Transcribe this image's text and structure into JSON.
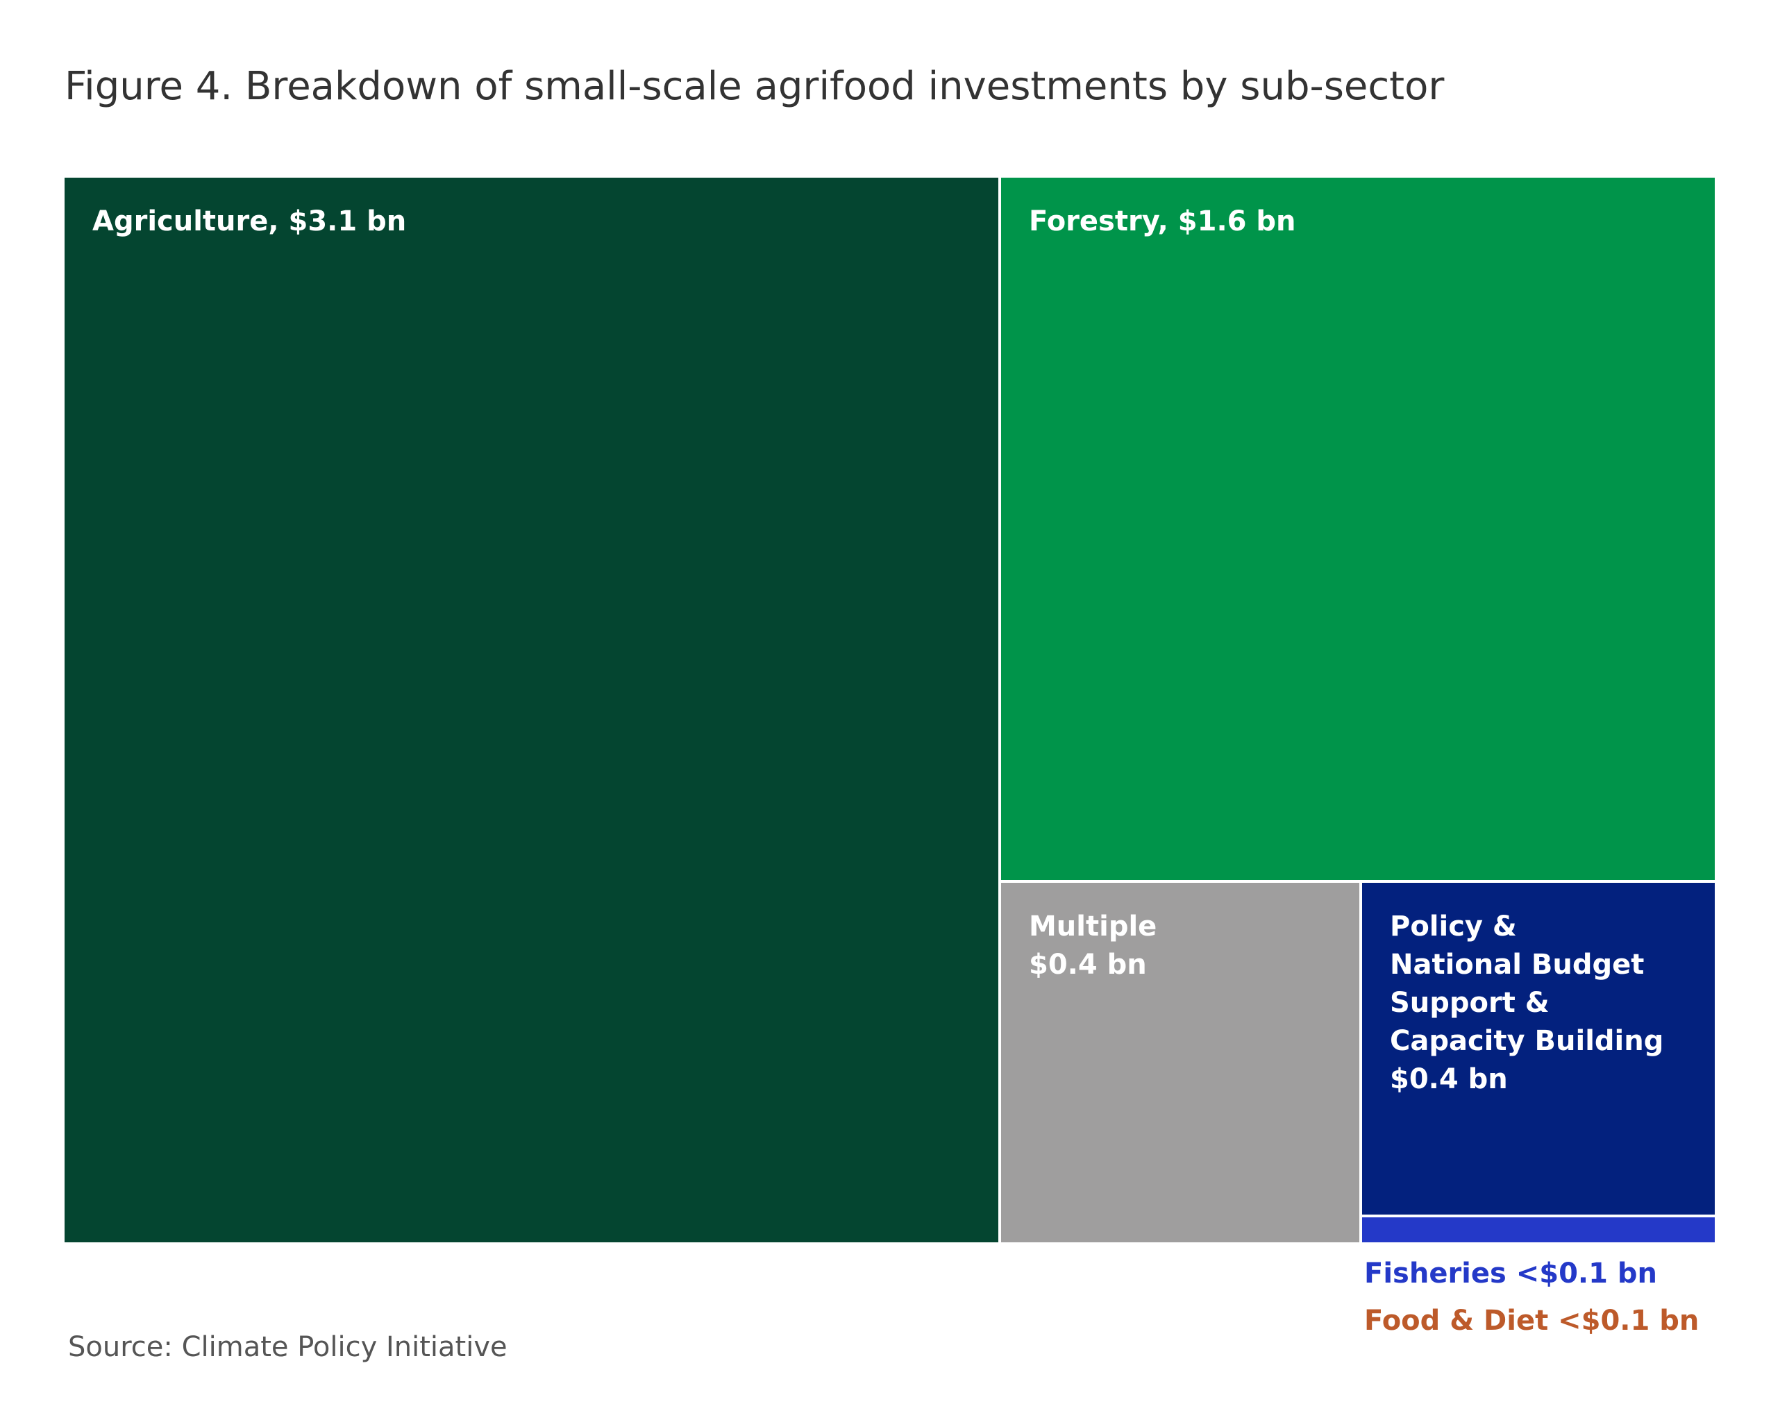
{
  "title": "Figure 4. Breakdown of small-scale agrifood investments by sub-sector",
  "source": "Source: Climate Policy Initiative",
  "chart_data": {
    "type": "treemap",
    "unit": "$ bn",
    "items": [
      {
        "key": "agriculture",
        "name": "Agriculture",
        "label": "Agriculture, $3.1 bn",
        "value": 3.1,
        "color": "#044530"
      },
      {
        "key": "forestry",
        "name": "Forestry",
        "label": "Forestry, $1.6 bn",
        "value": 1.6,
        "color": "#00944A"
      },
      {
        "key": "multiple",
        "name": "Multiple",
        "label": "Multiple\n$0.4 bn",
        "value": 0.4,
        "color": "#9F9E9E"
      },
      {
        "key": "policy",
        "name": "Policy & National Budget Support & Capacity Building",
        "label": "Policy &\nNational Budget\nSupport &\nCapacity Building\n$0.4 bn",
        "value": 0.4,
        "color": "#03217E"
      },
      {
        "key": "fisheries",
        "name": "Fisheries",
        "label": "Fisheries <$0.1 bn",
        "value": "<0.1",
        "color": "#2439C8"
      },
      {
        "key": "food",
        "name": "Food & Diet",
        "label": "Food & Diet <$0.1 bn",
        "value": "<0.1",
        "color": "#BD5A2A"
      }
    ]
  }
}
